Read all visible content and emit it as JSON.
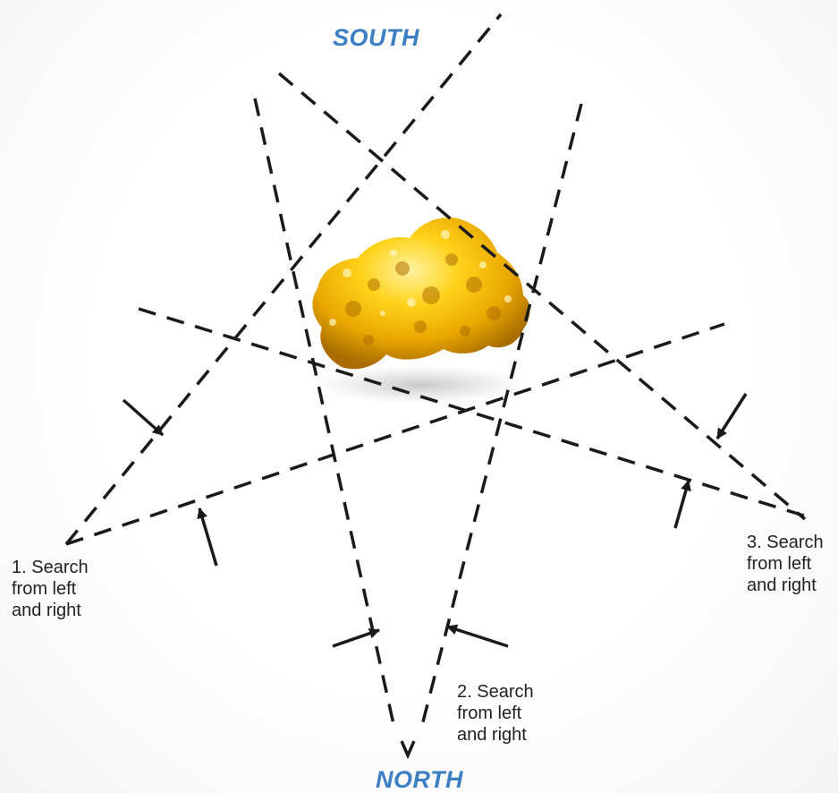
{
  "header": {
    "cut_off_text": ""
  },
  "labels": {
    "south": "SOUTH",
    "north": "NORTH"
  },
  "captions": [
    {
      "lines": [
        "1. Search",
        "from left",
        "and right"
      ]
    },
    {
      "lines": [
        "2. Search",
        "from left",
        "and right"
      ]
    },
    {
      "lines": [
        "3. Search",
        "from left",
        "and right"
      ]
    }
  ],
  "colors": {
    "compass": "#3d7fc4",
    "line": "#1a1a1a",
    "nugget_light": "#ffe76a",
    "nugget_mid": "#f2b600",
    "nugget_dark": "#b87a00"
  },
  "icons": {
    "nugget": "gold-nugget-image",
    "arrows": "pointer-arrow-icon"
  }
}
